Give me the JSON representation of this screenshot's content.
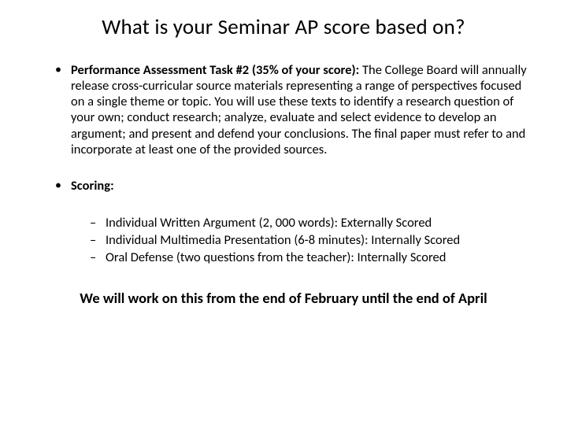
{
  "title": "What is your Seminar AP score based on?",
  "bullets": [
    {
      "lead": "Performance Assessment Task #2 (35% of your score):",
      "body": " The College Board will annually release cross-curricular source materials representing a range of perspectives focused on a single theme or topic. You will use these texts to identify a research question of your own; conduct research; analyze, evaluate and select evidence to develop an argument; and present and defend your conclusions. The final paper must refer to and incorporate at least one of the provided sources."
    },
    {
      "lead": "Scoring:",
      "body": "",
      "sub": [
        "Individual Written Argument (2, 000 words): Externally Scored",
        "Individual Multimedia Presentation (6-8 minutes): Internally Scored",
        "Oral Defense (two questions from the teacher): Internally Scored"
      ]
    }
  ],
  "closing": "We will work on this from the end of February until the end of April"
}
